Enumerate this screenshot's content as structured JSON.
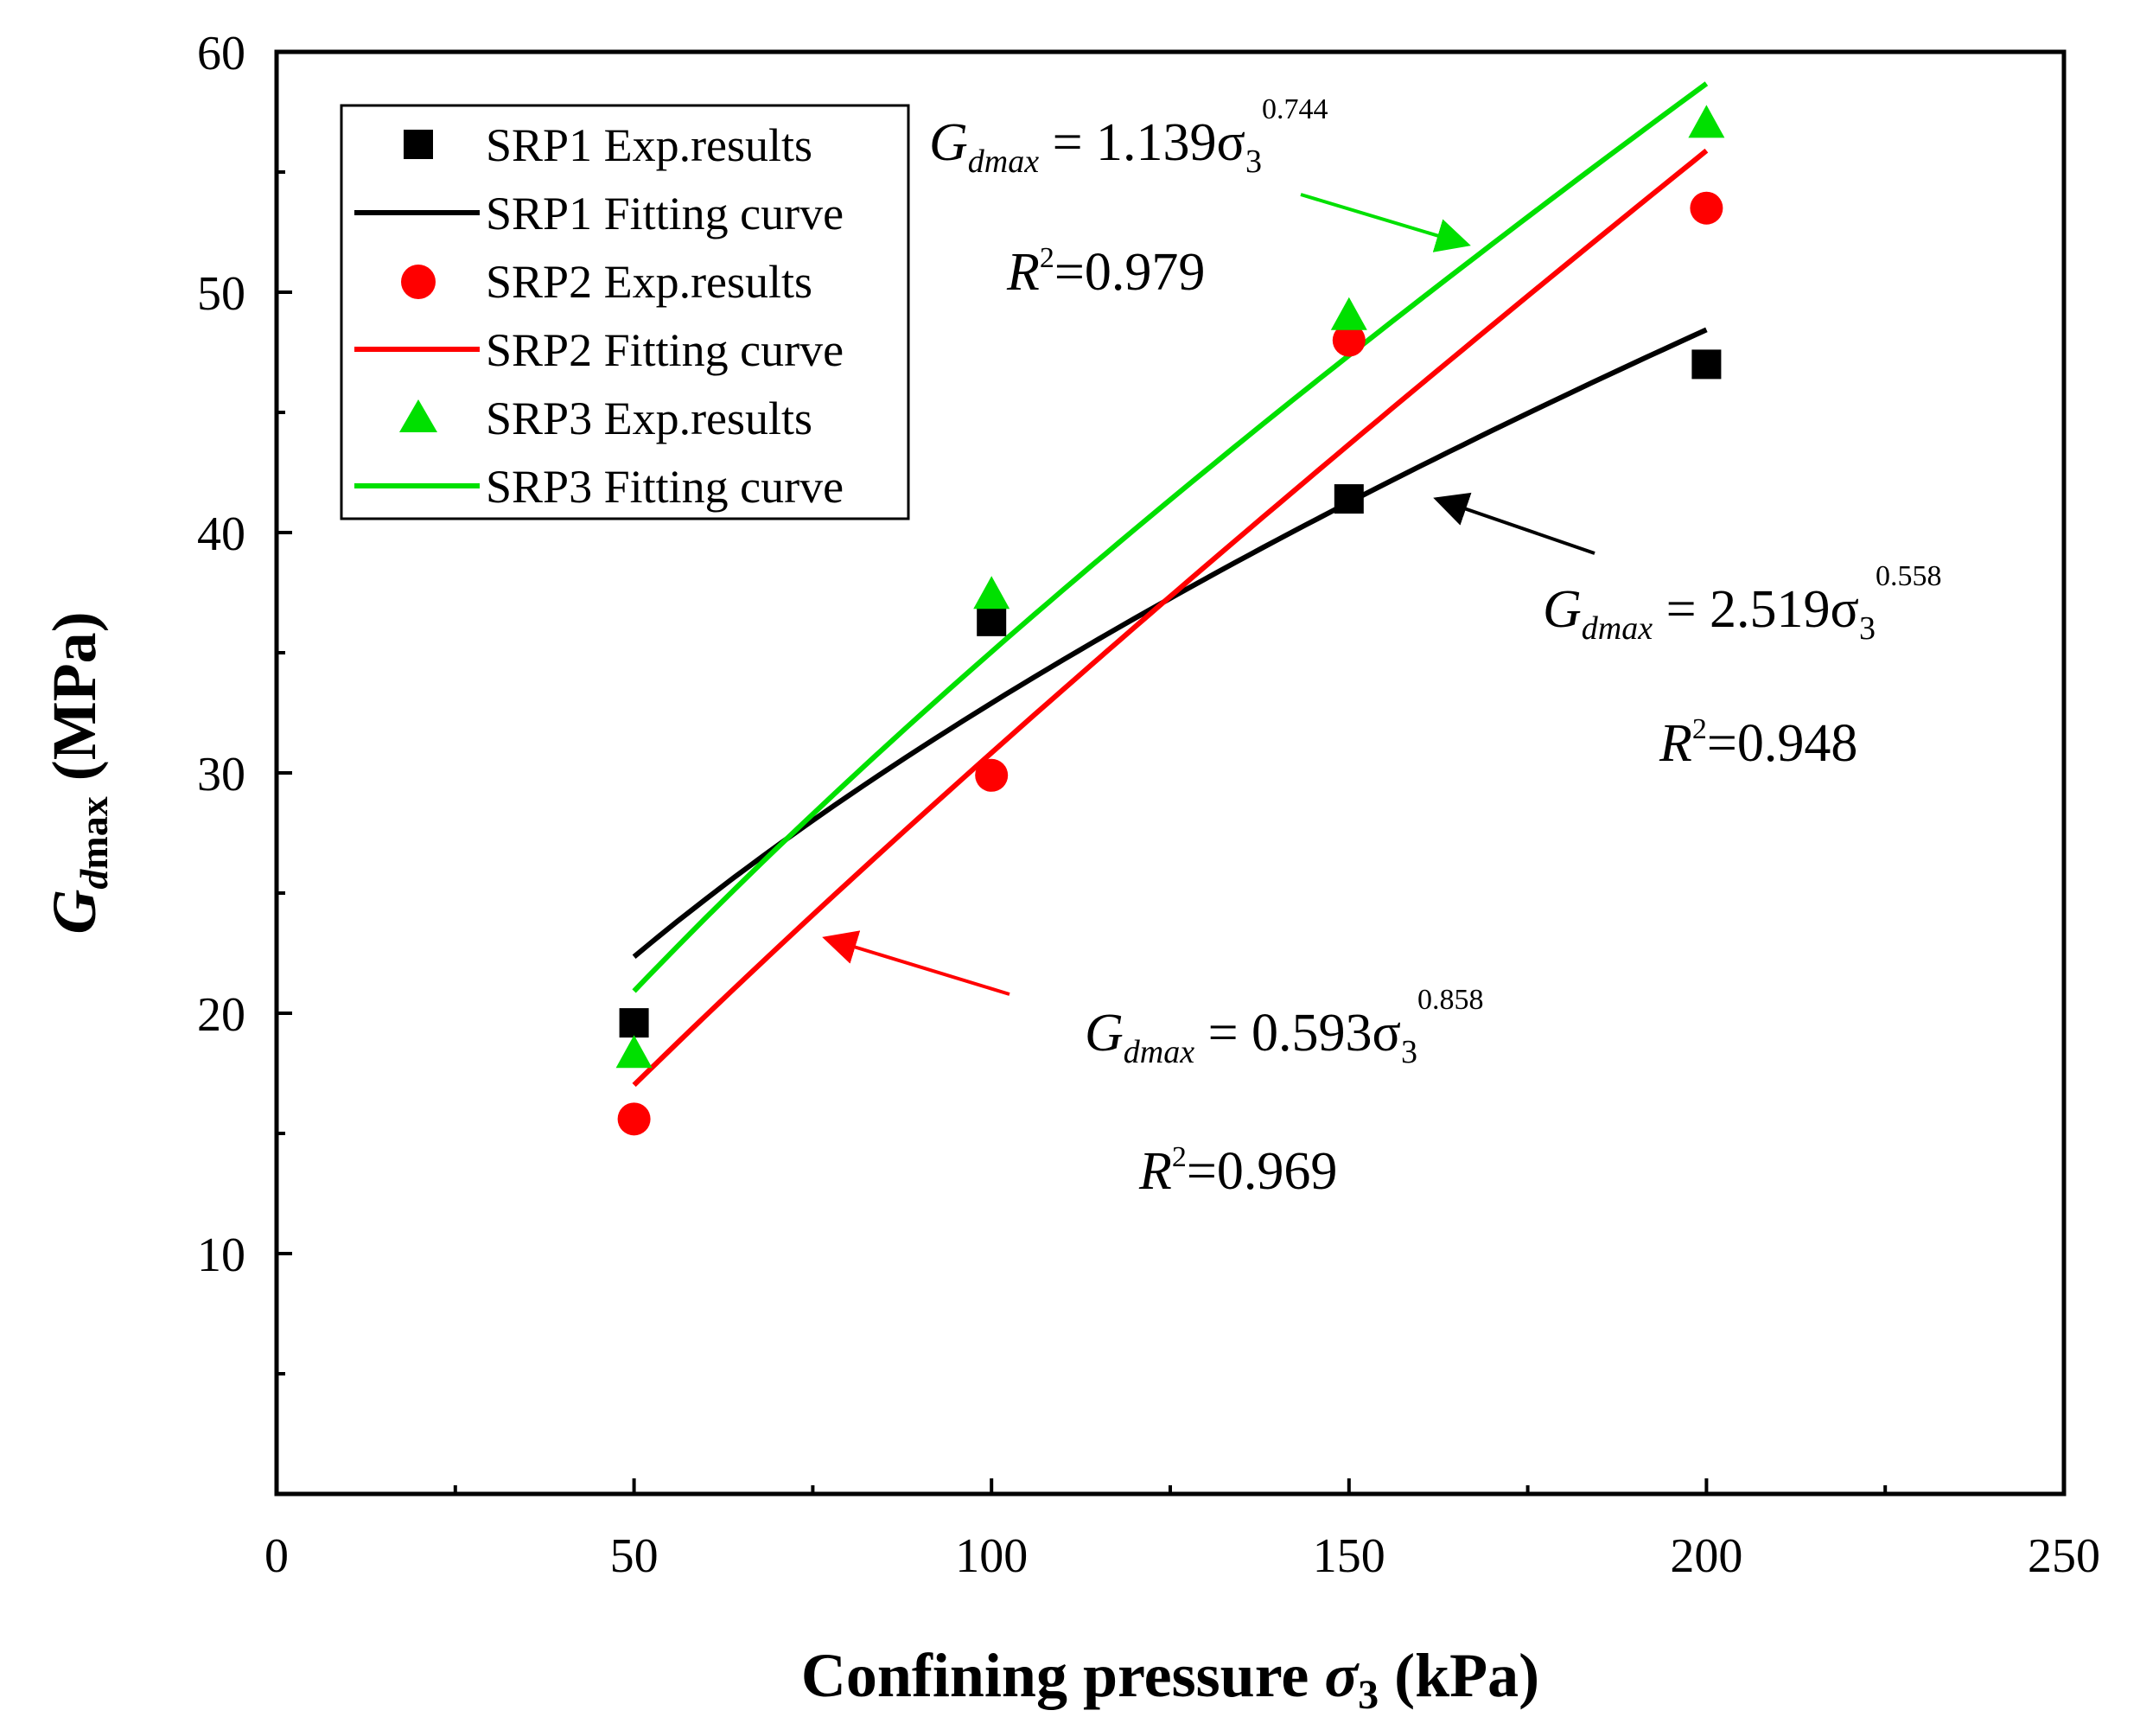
{
  "chart_data": {
    "type": "scatter",
    "xlabel": {
      "main": "Confining pressure ",
      "symbol": "σ",
      "sub": "3",
      "unit": " (kPa)"
    },
    "ylabel": {
      "main": "G",
      "sub_d": "d",
      "sub_max": "max",
      "unit": " (MPa)"
    },
    "xlim": [
      0,
      250
    ],
    "ylim": [
      0,
      60
    ],
    "xticks": [
      0,
      50,
      100,
      150,
      200,
      250
    ],
    "yticks": [
      10,
      20,
      30,
      40,
      50,
      60
    ],
    "legend_position": "top-left",
    "series": [
      {
        "id": "srp1",
        "points_label": "SRP1 Exp.results",
        "curve_label": "SRP1 Fitting curve",
        "color": "#000000",
        "marker": "square",
        "x": [
          50,
          100,
          150,
          200
        ],
        "y": [
          19.6,
          36.3,
          41.4,
          47.0
        ],
        "fit": {
          "a": 2.519,
          "b": 0.558,
          "r2": "0.948"
        }
      },
      {
        "id": "srp2",
        "points_label": "SRP2 Exp.results",
        "curve_label": "SRP2 Fitting curve",
        "color": "#ff0000",
        "marker": "circle",
        "x": [
          50,
          100,
          150,
          200
        ],
        "y": [
          15.6,
          29.9,
          48.0,
          53.5
        ],
        "fit": {
          "a": 0.593,
          "b": 0.858,
          "r2": "0.969"
        }
      },
      {
        "id": "srp3",
        "points_label": "SRP3 Exp.results",
        "curve_label": "SRP3 Fitting curve",
        "color": "#00e000",
        "marker": "triangle",
        "x": [
          50,
          100,
          150,
          200
        ],
        "y": [
          18.3,
          37.4,
          49.0,
          57.0
        ],
        "fit": {
          "a": 1.139,
          "b": 0.744,
          "r2": "0.979"
        }
      }
    ],
    "annotations": {
      "srp1": {
        "G": "G",
        "sub": "dmax",
        "eq": " = 2.519σ",
        "base_sub": "3",
        "exp": "0.558",
        "R": "R",
        "R_sup": "2",
        "R_val": "=0.948"
      },
      "srp2": {
        "G": "G",
        "sub": "dmax",
        "eq": " = 0.593σ",
        "base_sub": "3",
        "exp": "0.858",
        "R": "R",
        "R_sup": "2",
        "R_val": "=0.969"
      },
      "srp3": {
        "G": "G",
        "sub": "dmax",
        "eq": " = 1.139σ",
        "base_sub": "3",
        "exp": "0.744",
        "R": "R",
        "R_sup": "2",
        "R_val": "=0.979"
      }
    }
  }
}
